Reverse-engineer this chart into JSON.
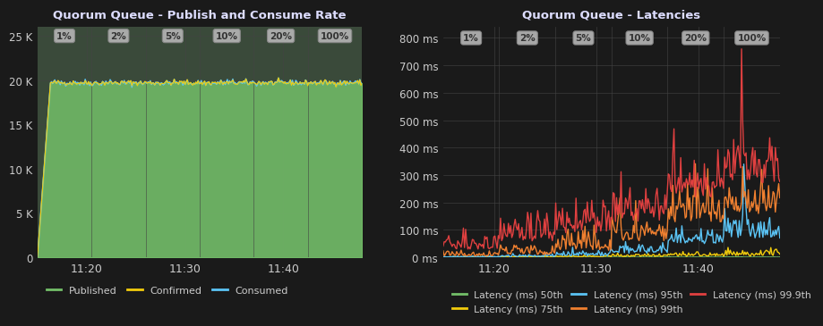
{
  "bg_color": "#1a1a1a",
  "plot_bg_color_left": "#3a4a3a",
  "plot_bg_color_right": "#1a1a1a",
  "grid_color": "#444444",
  "text_color": "#cccccc",
  "title_color": "#ddddff",
  "left_title": "Quorum Queue - Publish and Consume Rate",
  "right_title": "Quorum Queue - Latencies",
  "phase_labels": [
    "1%",
    "2%",
    "5%",
    "10%",
    "20%",
    "100%"
  ],
  "left_yticks": [
    0,
    5000,
    10000,
    15000,
    20000,
    25000
  ],
  "left_ytick_labels": [
    "0",
    "5 K",
    "10 K",
    "15 K",
    "20 K",
    "25 K"
  ],
  "left_ylim": [
    0,
    26000
  ],
  "right_ytick_labels": [
    "0 ms",
    "100 ms",
    "200 ms",
    "300 ms",
    "400 ms",
    "500 ms",
    "600 ms",
    "700 ms",
    "800 ms"
  ],
  "right_yticks": [
    0,
    100,
    200,
    300,
    400,
    500,
    600,
    700,
    800
  ],
  "right_ylim": [
    0,
    840
  ],
  "xtick_labels": [
    "11:20",
    "11:30",
    "11:40"
  ],
  "published_color": "#73bf69",
  "confirmed_color": "#f2cc0c",
  "consumed_color": "#5bc4f5",
  "latency_50_color": "#73bf69",
  "latency_75_color": "#f2cc0c",
  "latency_95_color": "#5bc4f5",
  "latency_99_color": "#f08030",
  "latency_999_color": "#e04040",
  "legend_left": [
    {
      "label": "Published",
      "color": "#73bf69"
    },
    {
      "label": "Confirmed",
      "color": "#f2cc0c"
    },
    {
      "label": "Consumed",
      "color": "#5bc4f5"
    }
  ],
  "legend_right": [
    {
      "label": "Latency (ms) 50th",
      "color": "#73bf69"
    },
    {
      "label": "Latency (ms) 75th",
      "color": "#f2cc0c"
    },
    {
      "label": "Latency (ms) 95th",
      "color": "#5bc4f5"
    },
    {
      "label": "Latency (ms) 99th",
      "color": "#f08030"
    },
    {
      "label": "Latency (ms) 99.9th",
      "color": "#e04040"
    }
  ]
}
